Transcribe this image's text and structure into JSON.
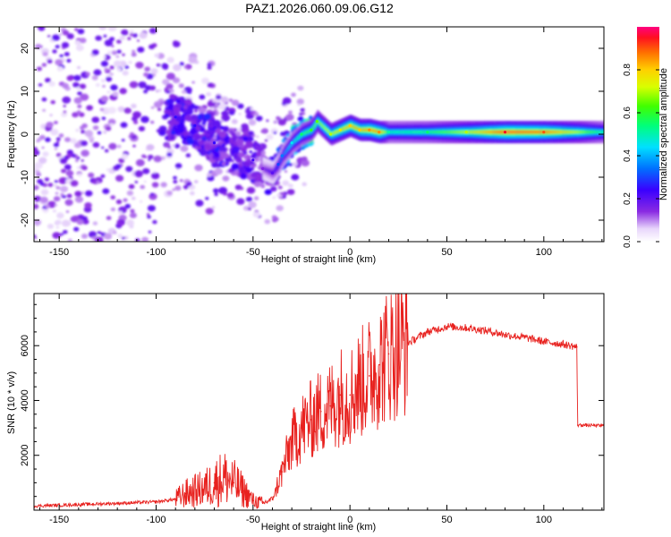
{
  "figure": {
    "title": "PAZ1.2026.060.09.06.G12"
  },
  "chart_data": [
    {
      "type": "heatmap",
      "title": "PAZ1.2026.060.09.06.G12",
      "xlabel": "Height of straight line (km)",
      "ylabel": "Frequency (Hz)",
      "xlim": [
        -163,
        131
      ],
      "ylim": [
        -25,
        25
      ],
      "xticks": [
        -150,
        -100,
        -50,
        0,
        50,
        100
      ],
      "yticks": [
        -20,
        -10,
        0,
        10,
        20
      ],
      "colorbar": {
        "label": "Normalized spectral amplitude",
        "range": [
          0.0,
          1.0
        ],
        "ticks": [
          0.0,
          0.2,
          0.4,
          0.6,
          0.8
        ]
      },
      "ridge": {
        "x": [
          -90,
          -80,
          -70,
          -60,
          -50,
          -45,
          -40,
          -37,
          -35,
          -30,
          -25,
          -20,
          -17,
          -10,
          -5,
          0,
          5,
          10,
          15,
          20,
          40,
          60,
          80,
          100,
          131
        ],
        "freq": [
          4,
          2,
          -2,
          -4,
          -6,
          -8,
          -9,
          -7,
          -5,
          -2,
          0,
          1,
          3,
          0,
          1,
          2,
          1,
          1,
          0.5,
          0.5,
          0.5,
          0.5,
          0.5,
          0.5,
          0.5
        ],
        "amplitude": [
          0.25,
          0.25,
          0.25,
          0.22,
          0.22,
          0.15,
          0.2,
          0.3,
          0.35,
          0.45,
          0.55,
          0.6,
          0.65,
          0.7,
          0.75,
          0.8,
          0.8,
          0.85,
          0.85,
          0.5,
          0.55,
          0.7,
          0.95,
          0.9,
          0.5
        ]
      }
    },
    {
      "type": "line",
      "xlabel": "Height of straight line (km)",
      "ylabel": "SNR (10 * v/v)",
      "xlim": [
        -163,
        131
      ],
      "ylim": [
        0,
        7900
      ],
      "xticks": [
        -150,
        -100,
        -50,
        0,
        50,
        100
      ],
      "yticks": [
        2000,
        4000,
        6000
      ],
      "series": [
        {
          "name": "SNR",
          "color": "#e8211e",
          "x": [
            -163,
            -120,
            -100,
            -90,
            -85,
            -75,
            -70,
            -65,
            -60,
            -55,
            -50,
            -45,
            -40,
            -35,
            -30,
            -25,
            -20,
            -15,
            -10,
            -5,
            0,
            5,
            10,
            15,
            20,
            25,
            30,
            35,
            40,
            50,
            60,
            70,
            80,
            90,
            100,
            110,
            117,
            117.5,
            120,
            131
          ],
          "y": [
            150,
            250,
            300,
            400,
            600,
            800,
            1000,
            1200,
            1000,
            700,
            350,
            250,
            400,
            1400,
            2500,
            3000,
            3300,
            3600,
            3800,
            4200,
            4200,
            4600,
            4900,
            5300,
            5700,
            5950,
            6100,
            6300,
            6500,
            6700,
            6650,
            6550,
            6400,
            6300,
            6150,
            6050,
            5950,
            3100,
            3100,
            3080
          ]
        }
      ]
    }
  ]
}
